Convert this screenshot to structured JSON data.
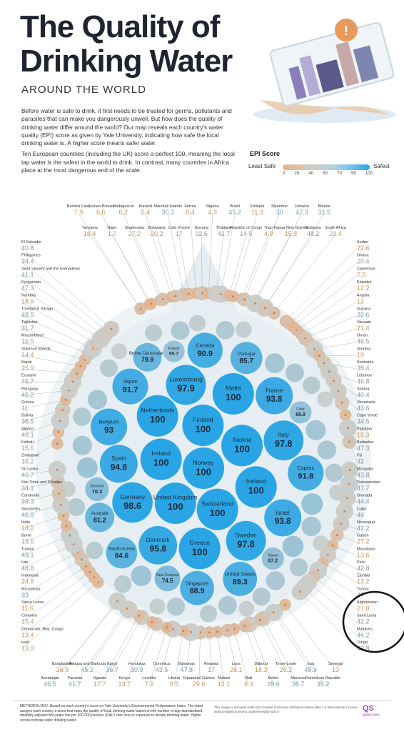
{
  "title_line1": "The Quality of",
  "title_line2": "Drinking Water",
  "subtitle": "AROUND THE WORLD",
  "intro_p1": "Before water is safe to drink, it first needs to be treated for germs, pollutants and parasites that can make you dangerously unwell. But how does the quality of drinking water differ around the world? Our map reveals each country's water quality (EPI) score as given by Yale University, indicating how safe the local drinking water is. A higher score means safer water.",
  "intro_p2": "Ten European countries (including the UK) score a perfect 100, meaning the local tap water is the safest in the world to drink. In contrast, many countries in Africa place at the most dangerous end of the scale.",
  "legend": {
    "title": "EPI Score",
    "least": "Least Safe",
    "safest": "Safest",
    "ticks": [
      "0",
      "20",
      "40",
      "50",
      "70",
      "95",
      "100"
    ]
  },
  "colors": {
    "low": "#e4b48e",
    "mid": "#c9cfcf",
    "high": "#29a5e6",
    "label_low": "#c99561",
    "label_mid": "#7d9aa6",
    "label_high": "#3a9ad9"
  },
  "footer": {
    "methodology": "METHODOLOGY: Based on each country's score on Yale University's Environmental Performance Index. The index assigns each country a score that rates the quality of local drinking water based on the number of age-standardised, disability-adjusted life-years lost per 100,000 persons (DALY rate) due to exposure to unsafe drinking water. Higher scores indicate safer drinking water.",
    "license": "This image is licensed under the Creative Commons Attribution-Share Alike 4.0 International License - www.creativecommons.org/licenses/by-sa/4.0",
    "brand": "QS",
    "brand_sub": "QUAYLOGIC"
  },
  "chart_data": {
    "type": "bubble",
    "metric": "EPI Score",
    "countries": [
      {
        "name": "Burkina Faso",
        "value": 7.9
      },
      {
        "name": "Tanzania",
        "value": 18.4
      },
      {
        "name": "Guinea-Bissau",
        "value": 6.6
      },
      {
        "name": "Niger",
        "value": 1.7
      },
      {
        "name": "Madagascar",
        "value": 6.2
      },
      {
        "name": "Guatemala",
        "value": 27.2
      },
      {
        "name": "Burundi",
        "value": 5.4
      },
      {
        "name": "Botswana",
        "value": 20.2
      },
      {
        "name": "Marshall Islands",
        "value": 30.3
      },
      {
        "name": "Cote d'Ivoire",
        "value": 17
      },
      {
        "name": "Eritrea",
        "value": 6.4
      },
      {
        "name": "Guyana",
        "value": 32.6
      },
      {
        "name": "Nigeria",
        "value": 4.3
      },
      {
        "name": "Thailand",
        "value": 42.7
      },
      {
        "name": "Brazil",
        "value": 45.2
      },
      {
        "name": "Republic of Congo",
        "value": 14.5
      },
      {
        "name": "Ethiopia",
        "value": 11.3
      },
      {
        "name": "Togo",
        "value": 4.9
      },
      {
        "name": "Myanmar",
        "value": 30
      },
      {
        "name": "Papua New Guinea",
        "value": 15.8
      },
      {
        "name": "Jamaica",
        "value": 47.3
      },
      {
        "name": "Malaysia",
        "value": 48.2
      },
      {
        "name": "Bhutan",
        "value": 31.5
      },
      {
        "name": "South Africa",
        "value": 23.4
      },
      {
        "name": "Sudan",
        "value": 22.6
      },
      {
        "name": "Ghana",
        "value": 20.4
      },
      {
        "name": "Cameroon",
        "value": 7.5
      },
      {
        "name": "Eswatini",
        "value": 12.2
      },
      {
        "name": "Angola",
        "value": 12
      },
      {
        "name": "Guyana",
        "value": 32.6
      },
      {
        "name": "Vanuatu",
        "value": 21.4
      },
      {
        "name": "Oman",
        "value": 46.5
      },
      {
        "name": "Kazakhstan",
        "value": 56
      },
      {
        "name": "Hungary",
        "value": 60.6
      },
      {
        "name": "Gambia",
        "value": 19
      },
      {
        "name": "Suriname",
        "value": 35.4
      },
      {
        "name": "Lebanon",
        "value": 46.8
      },
      {
        "name": "Samoa",
        "value": 40.4
      },
      {
        "name": "Venezuela",
        "value": 43.6
      },
      {
        "name": "Cape Verde",
        "value": 34.5
      },
      {
        "name": "Pakistan",
        "value": 15.3
      },
      {
        "name": "Colombia",
        "value": 50.1
      },
      {
        "name": "Barbados",
        "value": 47.3
      },
      {
        "name": "Fiji",
        "value": 32
      },
      {
        "name": "Mongolia",
        "value": 43.8
      },
      {
        "name": "Moldova",
        "value": 50.8
      },
      {
        "name": "United Arab Emirates",
        "value": 51.7
      },
      {
        "name": "Turkmenistan",
        "value": 47.7
      },
      {
        "name": "Grenada",
        "value": 44.4
      },
      {
        "name": "Cuba",
        "value": 46
      },
      {
        "name": "Spain",
        "value": 94.8
      },
      {
        "name": "Ukraine",
        "value": 55.1
      },
      {
        "name": "Nicaragua",
        "value": 42.2
      },
      {
        "name": "Gabon",
        "value": 27.2
      },
      {
        "name": "Mauritania",
        "value": 13.6
      },
      {
        "name": "Peru",
        "value": 42.8
      },
      {
        "name": "Latvia",
        "value": 57.7
      },
      {
        "name": "Zambia",
        "value": 13.2
      },
      {
        "name": "Turkey",
        "value": 47
      },
      {
        "name": "Afghanistan",
        "value": 27.8
      },
      {
        "name": "Saint Lucia",
        "value": 42.2
      },
      {
        "name": "Russia",
        "value": 55.8
      },
      {
        "name": "Maldives",
        "value": 44.2
      },
      {
        "name": "Belarus",
        "value": 60.7
      },
      {
        "name": "Tonga",
        "value": 42.8
      },
      {
        "name": "Lithuania",
        "value": 57.4
      },
      {
        "name": "Kuwait",
        "value": 57.2
      },
      {
        "name": "Georgia",
        "value": 52.3
      },
      {
        "name": "Albania",
        "value": 50.3
      },
      {
        "name": "Senegal",
        "value": 13
      },
      {
        "name": "Dominican Republic",
        "value": 35.2
      },
      {
        "name": "Iraq",
        "value": 45.9
      },
      {
        "name": "Armenia",
        "value": 61.7
      },
      {
        "name": "Slovakia",
        "value": 64.6
      },
      {
        "name": "Mauritius",
        "value": 63.6
      },
      {
        "name": "Sweden",
        "value": 97.8
      },
      {
        "name": "Italy",
        "value": 97.8
      },
      {
        "name": "Poland",
        "value": 65.7
      },
      {
        "name": "Morocco",
        "value": 36.7
      },
      {
        "name": "Vietnam",
        "value": 50.9
      },
      {
        "name": "Timor-Leste",
        "value": 26.2
      },
      {
        "name": "Belize",
        "value": 39.6
      },
      {
        "name": "Czech Republic",
        "value": 65.2
      },
      {
        "name": "Japan",
        "value": 91.7
      },
      {
        "name": "Canada",
        "value": 90.9
      },
      {
        "name": "Djibouti",
        "value": 18.3
      },
      {
        "name": "Bosnia & Herzegovina",
        "value": 57.3
      },
      {
        "name": "Mali",
        "value": 8.3
      },
      {
        "name": "Laos",
        "value": 26.1
      },
      {
        "name": "Norway",
        "value": 100
      },
      {
        "name": "Finland",
        "value": 100
      },
      {
        "name": "Switzerland",
        "value": 100
      },
      {
        "name": "Uruguay",
        "value": 61.8
      },
      {
        "name": "North Macedonia",
        "value": 58.3
      },
      {
        "name": "Malawi",
        "value": 12.1
      },
      {
        "name": "Rwanda",
        "value": 17
      },
      {
        "name": "Brunei Darussalam",
        "value": 79.9
      },
      {
        "name": "Germany",
        "value": 98.6
      },
      {
        "name": "United Kingdom",
        "value": 100
      },
      {
        "name": "Croatia",
        "value": 63.3
      },
      {
        "name": "Equatorial Guinea",
        "value": 29.6
      },
      {
        "name": "Bahamas",
        "value": 47.8
      },
      {
        "name": "South Korea",
        "value": 84.6
      },
      {
        "name": "Ireland",
        "value": 100
      },
      {
        "name": "Austria",
        "value": 100
      },
      {
        "name": "Iceland",
        "value": 100
      },
      {
        "name": "Taiwan",
        "value": 67.2
      },
      {
        "name": "Jordan",
        "value": 54.4
      },
      {
        "name": "Liberia",
        "value": 9.5
      },
      {
        "name": "Dominica",
        "value": 43.5
      },
      {
        "name": "Lesotho",
        "value": 7.2
      },
      {
        "name": "Luxembourg",
        "value": 97.9
      },
      {
        "name": "Denmark",
        "value": 95.8
      },
      {
        "name": "Chile",
        "value": 66.8
      },
      {
        "name": "Costa Rica",
        "value": 55.3
      },
      {
        "name": "Mexico",
        "value": 50
      },
      {
        "name": "Portugal",
        "value": 85.7
      },
      {
        "name": "Netherlands",
        "value": 100
      },
      {
        "name": "Greece",
        "value": 100
      },
      {
        "name": "Malta",
        "value": 100
      },
      {
        "name": "Slovenia",
        "value": 70.3
      },
      {
        "name": "Romania",
        "value": 55.4
      },
      {
        "name": "Honduras",
        "value": 30.9
      },
      {
        "name": "Kenya",
        "value": 13.7
      },
      {
        "name": "Egypt",
        "value": 36.7
      },
      {
        "name": "Belgium",
        "value": 93
      },
      {
        "name": "Uganda",
        "value": 17.7
      },
      {
        "name": "Bulgaria",
        "value": 58
      },
      {
        "name": "Antigua and Barbuda",
        "value": 45.2
      },
      {
        "name": "Singapore",
        "value": 88.9
      },
      {
        "name": "Israel",
        "value": 93.8
      },
      {
        "name": "Australia",
        "value": 81.2
      },
      {
        "name": "France",
        "value": 93.8
      },
      {
        "name": "Cyprus",
        "value": 91.8
      },
      {
        "name": "China",
        "value": 58.4
      },
      {
        "name": "Panama",
        "value": 41.7
      },
      {
        "name": "Bangladesh",
        "value": 26.9
      },
      {
        "name": "United States of America",
        "value": 89.3
      },
      {
        "name": "Qatar",
        "value": 57
      },
      {
        "name": "New Zealand",
        "value": 74.5
      },
      {
        "name": "Serbia",
        "value": 60.5
      },
      {
        "name": "Argentina",
        "value": 59.5
      },
      {
        "name": "Estonia",
        "value": 59.2
      },
      {
        "name": "Bahrain",
        "value": 50.1
      },
      {
        "name": "Azerbaijan",
        "value": 46.5
      },
      {
        "name": "Haiti",
        "value": 13.9
      },
      {
        "name": "Democratic Rep. Congo",
        "value": 13.4
      },
      {
        "name": "Uzbekistan",
        "value": 54
      },
      {
        "name": "Comoros",
        "value": 15.4
      },
      {
        "name": "Sierra Leone",
        "value": 11.6
      },
      {
        "name": "Micronesia",
        "value": 33
      },
      {
        "name": "Indonesia",
        "value": 24.9
      },
      {
        "name": "Iran",
        "value": 48.8
      },
      {
        "name": "Tunisia",
        "value": 49.1
      },
      {
        "name": "Benin",
        "value": 13.6
      },
      {
        "name": "India",
        "value": 18.2
      },
      {
        "name": "Seychelles",
        "value": 45.8
      },
      {
        "name": "Cambodia",
        "value": 33.3
      },
      {
        "name": "Sao Tome and Principe",
        "value": 34.1
      },
      {
        "name": "Sri Lanka",
        "value": 46.7
      },
      {
        "name": "Zimbabwe",
        "value": 16.2
      },
      {
        "name": "Kiribati",
        "value": 15.6
      },
      {
        "name": "Montenegro",
        "value": 56.8
      },
      {
        "name": "Saudi Arabia",
        "value": 50
      },
      {
        "name": "Algeria",
        "value": 49.1
      },
      {
        "name": "Bolivia",
        "value": 38.5
      },
      {
        "name": "Guinea",
        "value": 11
      },
      {
        "name": "Paraguay",
        "value": 45.2
      },
      {
        "name": "Ecuador",
        "value": 46.7
      },
      {
        "name": "Nepal",
        "value": 25.9
      },
      {
        "name": "Solomon Islands",
        "value": 14.4
      },
      {
        "name": "Mozambique",
        "value": 16.5
      },
      {
        "name": "Tajikistan",
        "value": 31.7
      },
      {
        "name": "Trinidad & Tobago",
        "value": 48.5
      },
      {
        "name": "Namibia",
        "value": 18.9
      },
      {
        "name": "Kyrgyzstan",
        "value": 47.3
      },
      {
        "name": "Saint Vincent and the Grenadines",
        "value": 41.1
      },
      {
        "name": "Philippines",
        "value": 34.4
      },
      {
        "name": "El Salvador",
        "value": 40.8
      }
    ]
  }
}
